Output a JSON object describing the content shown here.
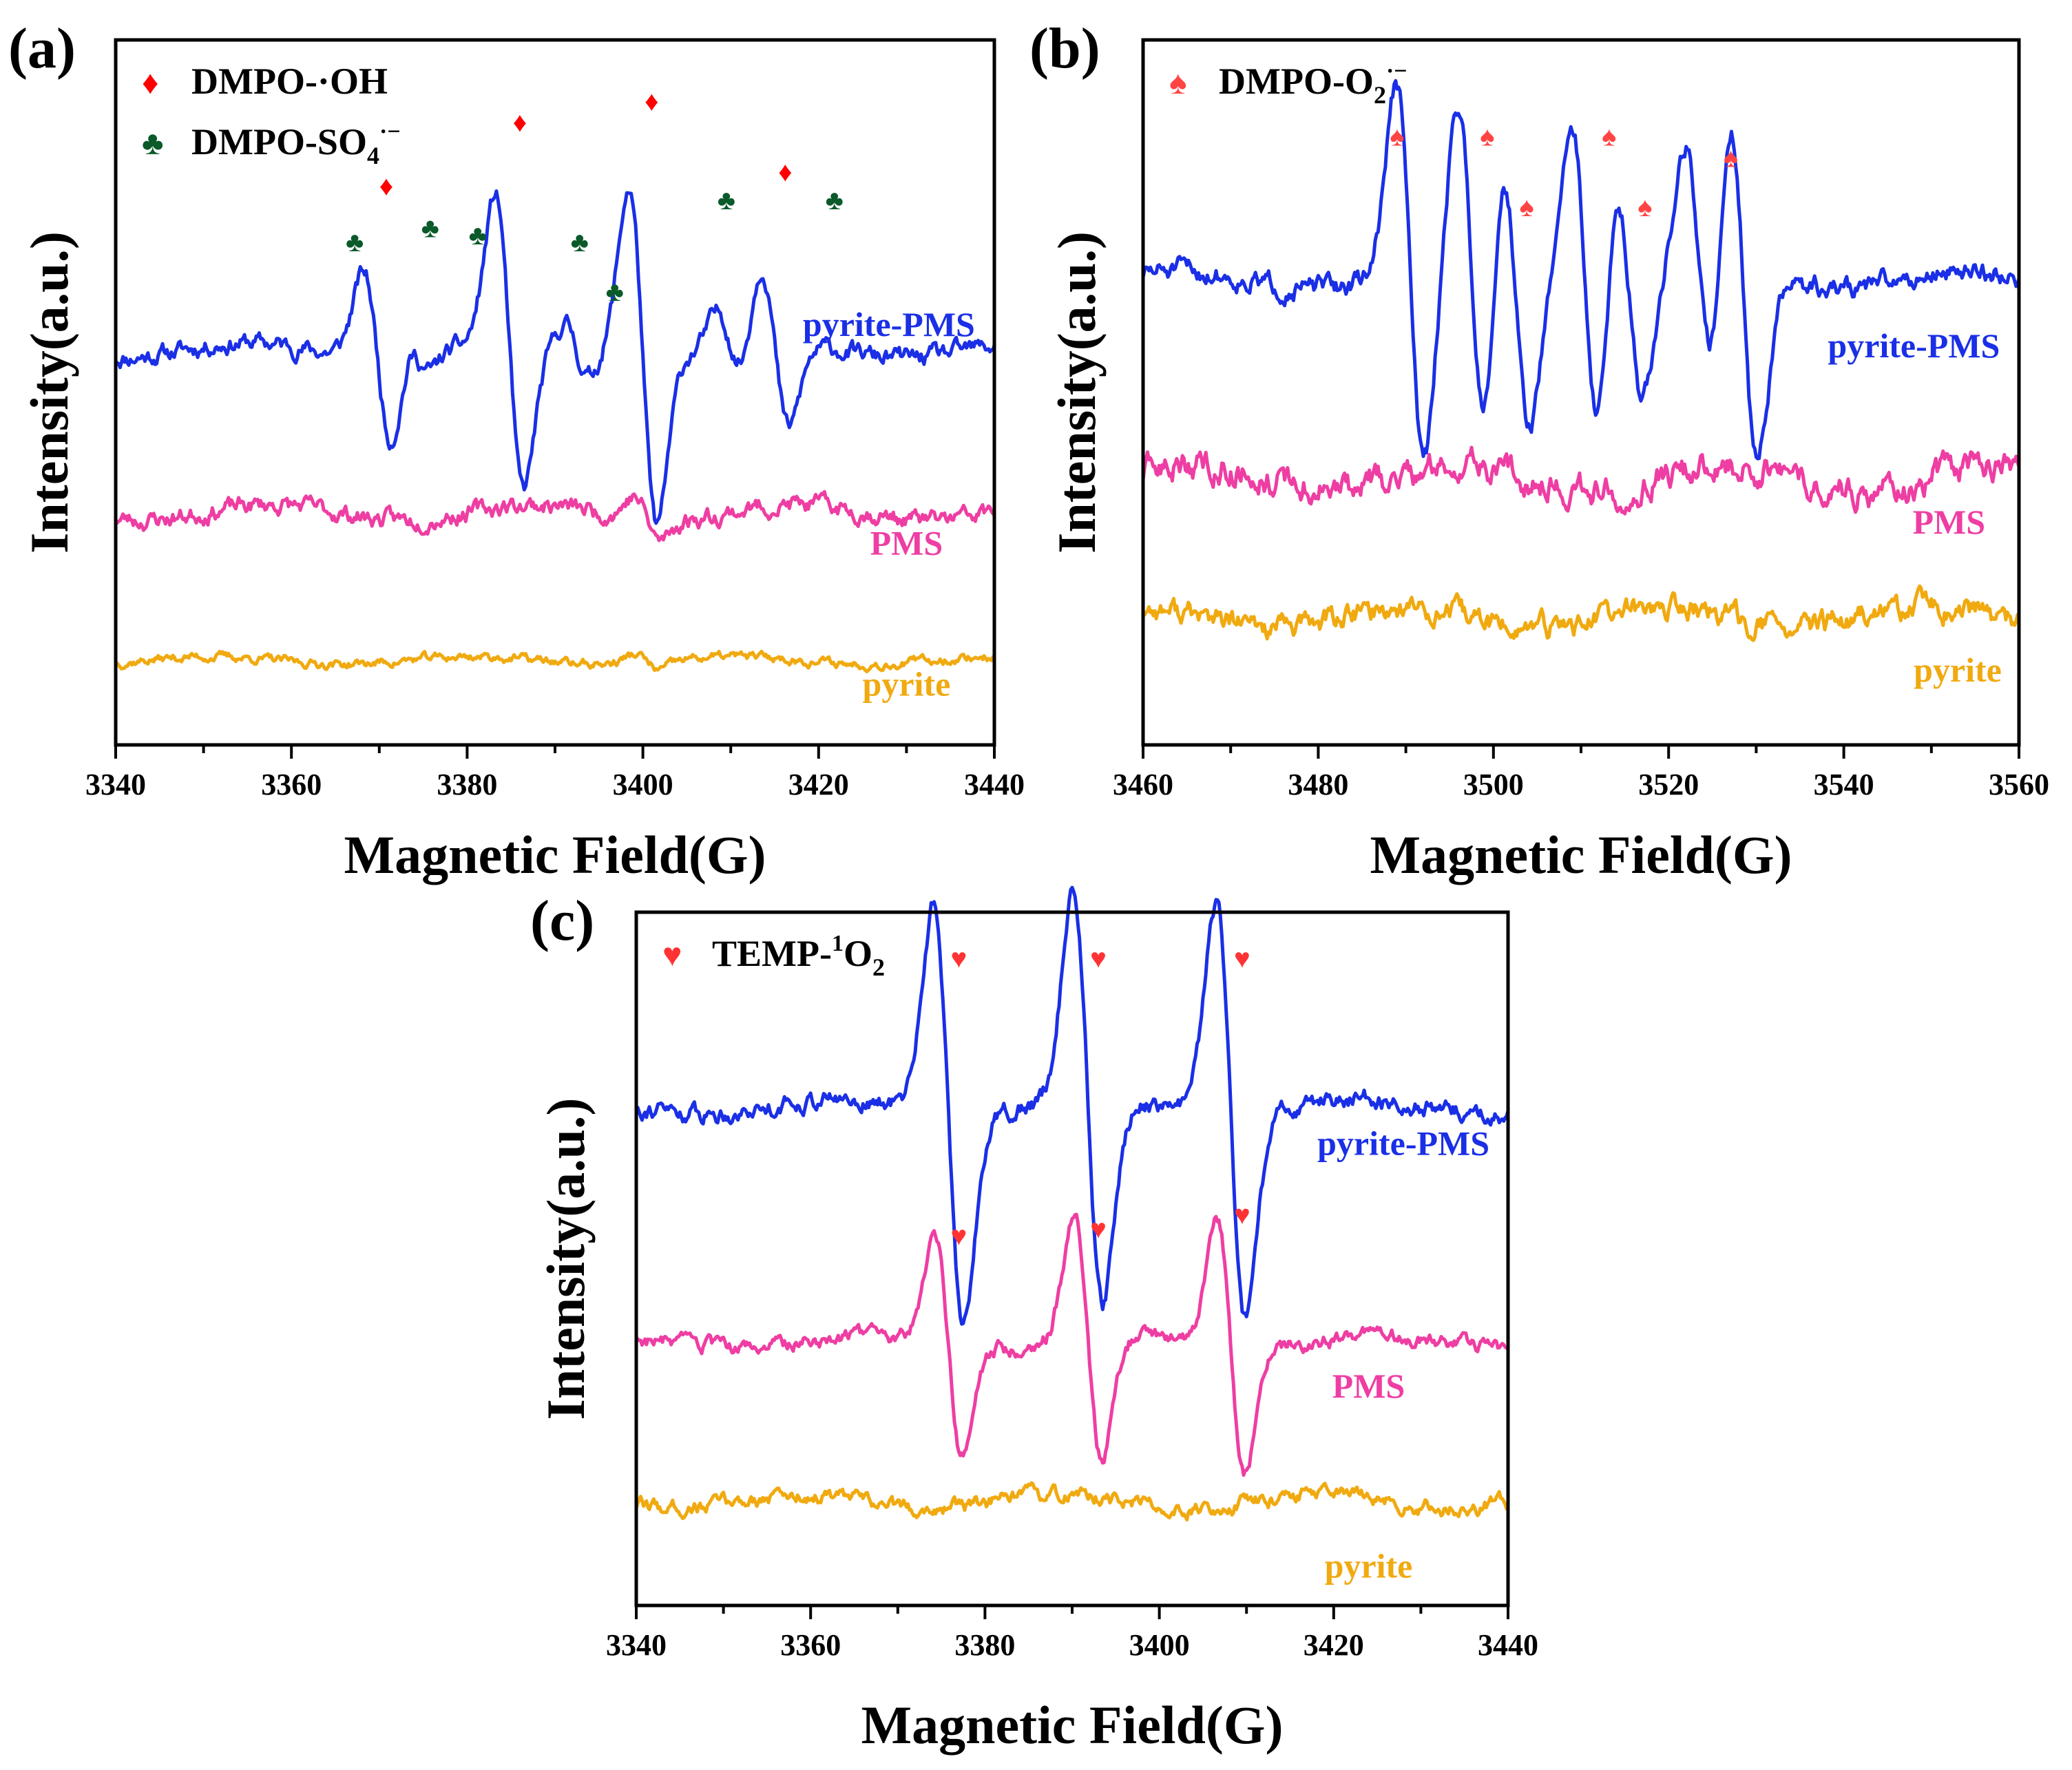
{
  "chart_data": [
    {
      "panel_label": "(a)",
      "type": "line",
      "xlabel": "Magnetic Field(G)",
      "ylabel": "Intensity(a.u.)",
      "xlim": [
        3340,
        3440
      ],
      "xticks": [
        "3340",
        "3360",
        "3380",
        "3400",
        "3420",
        "3440"
      ],
      "legend": [
        {
          "symbol": "♦",
          "color": "#ff0000",
          "text": "DMPO-·OH"
        },
        {
          "symbol": "♣",
          "color": "#0a5a2a",
          "text": "DMPO-SO",
          "sub": "4",
          "sup": "·−"
        }
      ],
      "series": [
        {
          "name": "pyrite-PMS",
          "color": "#1a2fe6",
          "offset": 0.56,
          "noise": 0.012,
          "seed": 11,
          "lines": [
            {
              "c": 3369.8,
              "w": 1.6,
              "a": 0.12
            },
            {
              "c": 3384.8,
              "w": 1.6,
              "a": 0.21
            },
            {
              "c": 3400.0,
              "w": 1.6,
              "a": 0.24
            },
            {
              "c": 3415.0,
              "w": 1.6,
              "a": 0.12
            },
            {
              "c": 3374.5,
              "w": 1.3,
              "a": 0.025
            },
            {
              "c": 3392.5,
              "w": 1.3,
              "a": 0.035
            },
            {
              "c": 3410.0,
              "w": 1.5,
              "a": 0.05
            }
          ]
        },
        {
          "name": "PMS",
          "color": "#ee3ea3",
          "offset": 0.33,
          "noise": 0.012,
          "seed": 23,
          "lines": [
            {
              "c": 3400.5,
              "w": 1.5,
              "a": 0.03
            }
          ]
        },
        {
          "name": "pyrite",
          "color": "#f0aa10",
          "offset": 0.12,
          "noise": 0.006,
          "seed": 37,
          "lines": [
            {
              "c": 3400.5,
              "w": 1.5,
              "a": 0.012
            }
          ]
        }
      ],
      "markers": [
        {
          "x": 3370.8,
          "y": 0.78,
          "symbol": "♦",
          "color": "#ff0000"
        },
        {
          "x": 3386.0,
          "y": 0.87,
          "symbol": "♦",
          "color": "#ff0000"
        },
        {
          "x": 3401.0,
          "y": 0.9,
          "symbol": "♦",
          "color": "#ff0000"
        },
        {
          "x": 3416.2,
          "y": 0.8,
          "symbol": "♦",
          "color": "#ff0000"
        },
        {
          "x": 3367.2,
          "y": 0.7,
          "symbol": "♣",
          "color": "#0a5a2a"
        },
        {
          "x": 3375.8,
          "y": 0.72,
          "symbol": "♣",
          "color": "#0a5a2a"
        },
        {
          "x": 3381.2,
          "y": 0.71,
          "symbol": "♣",
          "color": "#0a5a2a"
        },
        {
          "x": 3392.8,
          "y": 0.7,
          "symbol": "♣",
          "color": "#0a5a2a"
        },
        {
          "x": 3396.8,
          "y": 0.63,
          "symbol": "♣",
          "color": "#0a5a2a"
        },
        {
          "x": 3409.5,
          "y": 0.76,
          "symbol": "♣",
          "color": "#0a5a2a"
        },
        {
          "x": 3421.8,
          "y": 0.76,
          "symbol": "♣",
          "color": "#0a5a2a"
        }
      ],
      "series_labels": [
        {
          "text": "pyrite-PMS",
          "color": "#1a2fe6",
          "x": 3428.0,
          "y": 0.58
        },
        {
          "text": "PMS",
          "color": "#ee3ea3",
          "x": 3430.0,
          "y": 0.27
        },
        {
          "text": "pyrite",
          "color": "#f0aa10",
          "x": 3430.0,
          "y": 0.07
        }
      ]
    },
    {
      "panel_label": "(b)",
      "type": "line",
      "xlabel": "Magnetic Field(G)",
      "ylabel": "Intensity(a.u.)",
      "xlim": [
        3460,
        3560
      ],
      "xticks": [
        "3460",
        "3480",
        "3500",
        "3520",
        "3540",
        "3560"
      ],
      "legend": [
        {
          "symbol": "♠",
          "color": "#ff4444",
          "text": "DMPO-O",
          "sub": "2",
          "sup": "·−"
        }
      ],
      "series": [
        {
          "name": "pyrite-PMS",
          "color": "#1a2fe6",
          "offset": 0.66,
          "noise": 0.014,
          "seed": 51,
          "lines": [
            {
              "c": 3490.5,
              "w": 1.6,
              "a": 0.27
            },
            {
              "c": 3502.5,
              "w": 1.6,
              "a": 0.2
            },
            {
              "c": 3515.5,
              "w": 1.6,
              "a": 0.17
            },
            {
              "c": 3528.5,
              "w": 1.6,
              "a": 0.26
            },
            {
              "c": 3497.5,
              "w": 1.6,
              "a": 0.24
            },
            {
              "c": 3510.5,
              "w": 1.6,
              "a": 0.23
            },
            {
              "c": 3523.5,
              "w": 1.6,
              "a": 0.18
            }
          ]
        },
        {
          "name": "PMS",
          "color": "#ee3ea3",
          "offset": 0.38,
          "noise": 0.02,
          "seed": 63,
          "lines": []
        },
        {
          "name": "pyrite",
          "color": "#f0aa10",
          "offset": 0.18,
          "noise": 0.016,
          "seed": 77,
          "lines": []
        }
      ],
      "markers": [
        {
          "x": 3489.0,
          "y": 0.85,
          "symbol": "♠",
          "color": "#ff4444"
        },
        {
          "x": 3499.3,
          "y": 0.85,
          "symbol": "♠",
          "color": "#ff4444"
        },
        {
          "x": 3503.8,
          "y": 0.75,
          "symbol": "♠",
          "color": "#ff4444"
        },
        {
          "x": 3513.2,
          "y": 0.85,
          "symbol": "♠",
          "color": "#ff4444"
        },
        {
          "x": 3517.3,
          "y": 0.75,
          "symbol": "♠",
          "color": "#ff4444"
        },
        {
          "x": 3527.1,
          "y": 0.82,
          "symbol": "♠",
          "color": "#ff4444"
        }
      ],
      "series_labels": [
        {
          "text": "pyrite-PMS",
          "color": "#1a2fe6",
          "x": 3548.0,
          "y": 0.55
        },
        {
          "text": "PMS",
          "color": "#ee3ea3",
          "x": 3552.0,
          "y": 0.3
        },
        {
          "text": "pyrite",
          "color": "#f0aa10",
          "x": 3553.0,
          "y": 0.09
        }
      ]
    },
    {
      "panel_label": "(c)",
      "type": "line",
      "xlabel": "Magnetic Field(G)",
      "ylabel": "Intensity(a.u.)",
      "xlim": [
        3340,
        3440
      ],
      "xticks": [
        "3340",
        "3360",
        "3380",
        "3400",
        "3420",
        "3440"
      ],
      "legend": [
        {
          "symbol": "♥",
          "color": "#ff3333",
          "text": "TEMP-",
          "pre_sup": "1",
          "text2": "O",
          "sub": "2"
        }
      ],
      "series": [
        {
          "name": "pyrite-PMS",
          "color": "#1a2fe6",
          "offset": 0.72,
          "noise": 0.012,
          "seed": 91,
          "lines": [
            {
              "c": 3375.8,
              "w": 1.7,
              "a": 0.3
            },
            {
              "c": 3391.8,
              "w": 1.7,
              "a": 0.3
            },
            {
              "c": 3408.2,
              "w": 1.7,
              "a": 0.3
            }
          ]
        },
        {
          "name": "PMS",
          "color": "#ee3ea3",
          "offset": 0.38,
          "noise": 0.01,
          "seed": 103,
          "lines": [
            {
              "c": 3375.8,
              "w": 1.6,
              "a": 0.16
            },
            {
              "c": 3391.8,
              "w": 1.6,
              "a": 0.18
            },
            {
              "c": 3408.2,
              "w": 1.6,
              "a": 0.18
            }
          ]
        },
        {
          "name": "pyrite",
          "color": "#f0aa10",
          "offset": 0.15,
          "noise": 0.01,
          "seed": 117,
          "lines": []
        }
      ],
      "markers": [
        {
          "x": 3377.0,
          "y": 0.92,
          "symbol": "♥",
          "color": "#ff3333"
        },
        {
          "x": 3393.0,
          "y": 0.92,
          "symbol": "♥",
          "color": "#ff3333"
        },
        {
          "x": 3409.5,
          "y": 0.92,
          "symbol": "♥",
          "color": "#ff3333"
        },
        {
          "x": 3377.0,
          "y": 0.52,
          "symbol": "♥",
          "color": "#ff3333"
        },
        {
          "x": 3393.0,
          "y": 0.53,
          "symbol": "♥",
          "color": "#ff3333"
        },
        {
          "x": 3409.5,
          "y": 0.55,
          "symbol": "♥",
          "color": "#ff3333"
        }
      ],
      "series_labels": [
        {
          "text": "pyrite-PMS",
          "color": "#1a2fe6",
          "x": 3428.0,
          "y": 0.65
        },
        {
          "text": "PMS",
          "color": "#ee3ea3",
          "x": 3424.0,
          "y": 0.3
        },
        {
          "text": "pyrite",
          "color": "#f0aa10",
          "x": 3424.0,
          "y": 0.04
        }
      ]
    }
  ]
}
